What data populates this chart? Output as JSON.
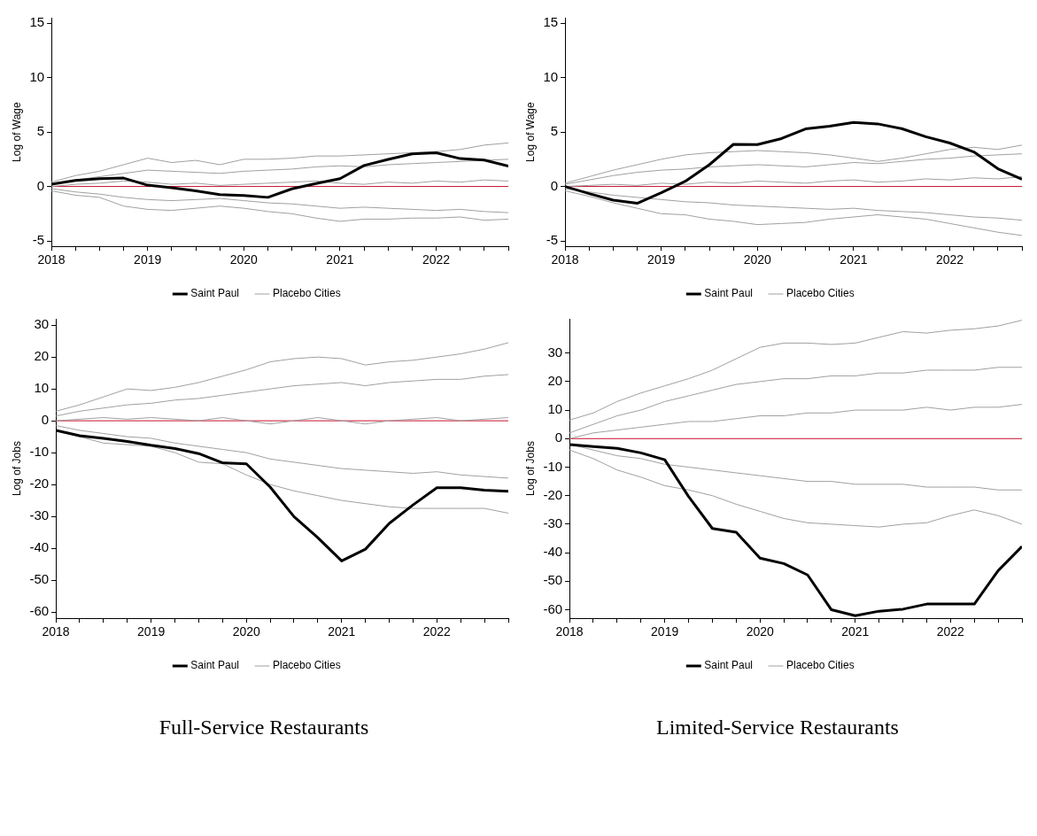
{
  "chart_data": [
    {
      "type": "line",
      "ylabel": "Log of Wage",
      "x": [
        2018,
        2018.25,
        2018.5,
        2018.75,
        2019,
        2019.25,
        2019.5,
        2019.75,
        2020,
        2020.25,
        2020.5,
        2020.75,
        2021,
        2021.25,
        2021.5,
        2021.75,
        2022,
        2022.25,
        2022.5,
        2022.75
      ],
      "xlim": [
        2018,
        2022.75
      ],
      "xticks": [
        2018,
        {
          "value": 2018.25,
          "label": null
        },
        {
          "value": 2018.5,
          "label": null
        },
        {
          "value": 2018.75,
          "label": null
        },
        2019,
        {
          "value": 2019.25,
          "label": null
        },
        {
          "value": 2019.5,
          "label": null
        },
        {
          "value": 2019.75,
          "label": null
        },
        2020,
        {
          "value": 2020.25,
          "label": null
        },
        {
          "value": 2020.5,
          "label": null
        },
        {
          "value": 2020.75,
          "label": null
        },
        2021,
        {
          "value": 2021.25,
          "label": null
        },
        {
          "value": 2021.5,
          "label": null
        },
        {
          "value": 2021.75,
          "label": null
        },
        2022,
        {
          "value": 2022.25,
          "label": null
        },
        {
          "value": 2022.5,
          "label": null
        },
        {
          "value": 2022.75,
          "label": null
        }
      ],
      "ylim": [
        -5.5,
        15.5
      ],
      "yticks": [
        -5,
        0,
        5,
        10,
        15
      ],
      "grid": false,
      "legend": "bottom",
      "ref_lines": [
        {
          "axis": "y",
          "value": 0,
          "color": "#c8102e"
        }
      ],
      "series": [
        {
          "name": "Saint Paul",
          "color": "#000000",
          "values": [
            0.2,
            0.55,
            0.72,
            0.77,
            0.12,
            -0.12,
            -0.4,
            -0.75,
            -0.82,
            -1.0,
            -0.22,
            0.27,
            0.72,
            1.93,
            2.49,
            3.0,
            3.1,
            2.56,
            2.42,
            1.88
          ]
        },
        {
          "name": "Placebo Cities",
          "color": "#a0a0a0",
          "values": [
            0.4,
            1.0,
            1.4,
            2.0,
            2.6,
            2.2,
            2.4,
            2.0,
            2.5,
            2.5,
            2.6,
            2.8,
            2.8,
            2.9,
            3.0,
            3.1,
            3.2,
            3.4,
            3.8,
            4.0
          ]
        },
        {
          "color": "#a0a0a0",
          "values": [
            -0.4,
            -0.8,
            -1.0,
            -1.8,
            -2.1,
            -2.2,
            -2.0,
            -1.8,
            -2.0,
            -2.3,
            -2.5,
            -2.9,
            -3.2,
            -3.0,
            -3.0,
            -2.9,
            -2.9,
            -2.8,
            -3.1,
            -3.0
          ]
        },
        {
          "color": "#a0a0a0",
          "values": [
            0.0,
            0.2,
            0.3,
            0.5,
            0.4,
            0.2,
            0.3,
            0.1,
            0.2,
            0.3,
            0.4,
            0.5,
            0.3,
            0.2,
            0.4,
            0.3,
            0.5,
            0.4,
            0.6,
            0.5
          ]
        },
        {
          "color": "#a0a0a0",
          "values": [
            0.2,
            0.6,
            0.9,
            1.2,
            1.5,
            1.4,
            1.3,
            1.2,
            1.4,
            1.5,
            1.6,
            1.8,
            1.9,
            1.8,
            2.0,
            2.1,
            2.2,
            2.3,
            2.4,
            2.5
          ]
        },
        {
          "color": "#a0a0a0",
          "values": [
            -0.2,
            -0.5,
            -0.7,
            -1.0,
            -1.2,
            -1.3,
            -1.2,
            -1.1,
            -1.3,
            -1.5,
            -1.6,
            -1.8,
            -2.0,
            -1.9,
            -2.0,
            -2.1,
            -2.2,
            -2.1,
            -2.3,
            -2.4
          ]
        }
      ]
    },
    {
      "type": "line",
      "ylabel": "Log of Wage",
      "x": [
        2018,
        2018.25,
        2018.5,
        2018.75,
        2019,
        2019.25,
        2019.5,
        2019.75,
        2020,
        2020.25,
        2020.5,
        2020.75,
        2021,
        2021.25,
        2021.5,
        2021.75,
        2022,
        2022.25,
        2022.5,
        2022.75
      ],
      "xlim": [
        2018,
        2022.75
      ],
      "xticks": [
        2018,
        {
          "value": 2018.25,
          "label": null
        },
        {
          "value": 2018.5,
          "label": null
        },
        {
          "value": 2018.75,
          "label": null
        },
        2019,
        {
          "value": 2019.25,
          "label": null
        },
        {
          "value": 2019.5,
          "label": null
        },
        {
          "value": 2019.75,
          "label": null
        },
        2020,
        {
          "value": 2020.25,
          "label": null
        },
        {
          "value": 2020.5,
          "label": null
        },
        {
          "value": 2020.75,
          "label": null
        },
        2021,
        {
          "value": 2021.25,
          "label": null
        },
        {
          "value": 2021.5,
          "label": null
        },
        {
          "value": 2021.75,
          "label": null
        },
        2022,
        {
          "value": 2022.25,
          "label": null
        },
        {
          "value": 2022.5,
          "label": null
        },
        {
          "value": 2022.75,
          "label": null
        }
      ],
      "ylim": [
        -5.5,
        15.5
      ],
      "yticks": [
        -5,
        0,
        5,
        10,
        15
      ],
      "grid": false,
      "legend": "bottom",
      "ref_lines": [
        {
          "axis": "y",
          "value": 0,
          "color": "#c8102e"
        }
      ],
      "series": [
        {
          "name": "Saint Paul",
          "color": "#000000",
          "values": [
            0,
            -0.65,
            -1.25,
            -1.54,
            -0.58,
            0.48,
            2.0,
            3.87,
            3.85,
            4.4,
            5.29,
            5.53,
            5.89,
            5.75,
            5.31,
            4.57,
            3.99,
            3.17,
            1.63,
            0.67
          ]
        },
        {
          "name": "Placebo Cities",
          "color": "#a0a0a0",
          "values": [
            0.3,
            0.9,
            1.5,
            2.0,
            2.5,
            2.9,
            3.1,
            3.2,
            3.3,
            3.2,
            3.1,
            2.9,
            2.6,
            2.3,
            2.6,
            3.0,
            3.4,
            3.6,
            3.4,
            3.8
          ]
        },
        {
          "color": "#a0a0a0",
          "values": [
            -0.4,
            -0.9,
            -1.5,
            -2.0,
            -2.5,
            -2.6,
            -3.0,
            -3.2,
            -3.5,
            -3.4,
            -3.3,
            -3.0,
            -2.8,
            -2.6,
            -2.8,
            -3.0,
            -3.4,
            -3.8,
            -4.2,
            -4.5
          ]
        },
        {
          "color": "#a0a0a0",
          "values": [
            0,
            0.1,
            0.2,
            0.1,
            0.3,
            0.2,
            0.4,
            0.3,
            0.5,
            0.4,
            0.3,
            0.5,
            0.6,
            0.4,
            0.5,
            0.7,
            0.6,
            0.8,
            0.7,
            0.9
          ]
        },
        {
          "color": "#a0a0a0",
          "values": [
            0.2,
            0.6,
            1.0,
            1.3,
            1.5,
            1.6,
            1.8,
            1.9,
            2.0,
            1.9,
            1.8,
            2.0,
            2.2,
            2.1,
            2.3,
            2.5,
            2.6,
            2.8,
            2.9,
            3.0
          ]
        },
        {
          "color": "#a0a0a0",
          "values": [
            -0.2,
            -0.5,
            -0.8,
            -1.0,
            -1.2,
            -1.4,
            -1.5,
            -1.7,
            -1.8,
            -1.9,
            -2.0,
            -2.1,
            -2.0,
            -2.2,
            -2.3,
            -2.4,
            -2.6,
            -2.8,
            -2.9,
            -3.1
          ]
        }
      ]
    },
    {
      "type": "line",
      "ylabel": "Log of Jobs",
      "annotations": [
        "Full-Service Restaurants"
      ],
      "x": [
        2018,
        2018.25,
        2018.5,
        2018.75,
        2019,
        2019.25,
        2019.5,
        2019.75,
        2020,
        2020.25,
        2020.5,
        2020.75,
        2021,
        2021.25,
        2021.5,
        2021.75,
        2022,
        2022.25,
        2022.5,
        2022.75
      ],
      "xlim": [
        2018,
        2022.75
      ],
      "xticks": [
        2018,
        {
          "value": 2018.25,
          "label": null
        },
        {
          "value": 2018.5,
          "label": null
        },
        {
          "value": 2018.75,
          "label": null
        },
        2019,
        {
          "value": 2019.25,
          "label": null
        },
        {
          "value": 2019.5,
          "label": null
        },
        {
          "value": 2019.75,
          "label": null
        },
        2020,
        {
          "value": 2020.25,
          "label": null
        },
        {
          "value": 2020.5,
          "label": null
        },
        {
          "value": 2020.75,
          "label": null
        },
        2021,
        {
          "value": 2021.25,
          "label": null
        },
        {
          "value": 2021.5,
          "label": null
        },
        {
          "value": 2021.75,
          "label": null
        },
        2022,
        {
          "value": 2022.25,
          "label": null
        },
        {
          "value": 2022.5,
          "label": null
        },
        {
          "value": 2022.75,
          "label": null
        }
      ],
      "ylim": [
        -62,
        32
      ],
      "yticks": [
        -60,
        -50,
        -40,
        -30,
        -20,
        -10,
        0,
        10,
        20,
        30
      ],
      "grid": false,
      "legend": "bottom",
      "ref_lines": [
        {
          "axis": "y",
          "value": 0,
          "color": "#c8102e"
        }
      ],
      "series": [
        {
          "name": "Saint Paul",
          "color": "#000000",
          "values": [
            -3.0,
            -4.7,
            -5.5,
            -6.5,
            -7.7,
            -8.7,
            -10.3,
            -13.2,
            -13.5,
            -20.8,
            -30.1,
            -36.7,
            -44,
            -40.3,
            -32.2,
            -26.4,
            -21,
            -21,
            -21.8,
            -22.1
          ]
        },
        {
          "name": "Placebo Cities",
          "color": "#a0a0a0",
          "values": [
            3,
            5,
            7.5,
            10,
            9.5,
            10.5,
            12,
            14,
            16,
            18.5,
            19.5,
            20,
            19.5,
            17.5,
            18.5,
            19,
            20,
            21,
            22.5,
            24.5
          ]
        },
        {
          "color": "#a0a0a0",
          "values": [
            -3,
            -5,
            -7,
            -7.5,
            -8,
            -10,
            -13,
            -13.5,
            -17,
            -20,
            -22,
            -23.5,
            -25,
            -26,
            -27,
            -27.5,
            -27.5,
            -27.5,
            -27.5,
            -29
          ]
        },
        {
          "color": "#a0a0a0",
          "values": [
            0,
            0.5,
            1,
            0.5,
            1,
            0.5,
            0,
            1,
            0,
            -1,
            0,
            1,
            0,
            -1,
            0,
            0.5,
            1,
            0,
            0.5,
            1
          ]
        },
        {
          "color": "#a0a0a0",
          "values": [
            1.5,
            3,
            4,
            5,
            5.5,
            6.5,
            7,
            8,
            9,
            10,
            11,
            11.5,
            12,
            11,
            12,
            12.5,
            13,
            13,
            14,
            14.5
          ]
        },
        {
          "color": "#a0a0a0",
          "values": [
            -1.5,
            -3,
            -4,
            -5,
            -5.5,
            -7,
            -8,
            -9,
            -10,
            -12,
            -13,
            -14,
            -15,
            -15.5,
            -16,
            -16.5,
            -16,
            -17,
            -17.5,
            -18
          ]
        }
      ]
    },
    {
      "type": "line",
      "ylabel": "Log of Jobs",
      "annotations": [
        "Limited-Service Restaurants"
      ],
      "x": [
        2018,
        2018.25,
        2018.5,
        2018.75,
        2019,
        2019.25,
        2019.5,
        2019.75,
        2020,
        2020.25,
        2020.5,
        2020.75,
        2021,
        2021.25,
        2021.5,
        2021.75,
        2022,
        2022.25,
        2022.5,
        2022.75
      ],
      "xlim": [
        2018,
        2022.75
      ],
      "xticks": [
        2018,
        {
          "value": 2018.25,
          "label": null
        },
        {
          "value": 2018.5,
          "label": null
        },
        {
          "value": 2018.75,
          "label": null
        },
        2019,
        {
          "value": 2019.25,
          "label": null
        },
        {
          "value": 2019.5,
          "label": null
        },
        {
          "value": 2019.75,
          "label": null
        },
        2020,
        {
          "value": 2020.25,
          "label": null
        },
        {
          "value": 2020.5,
          "label": null
        },
        {
          "value": 2020.75,
          "label": null
        },
        2021,
        {
          "value": 2021.25,
          "label": null
        },
        {
          "value": 2021.5,
          "label": null
        },
        {
          "value": 2021.75,
          "label": null
        },
        2022,
        {
          "value": 2022.25,
          "label": null
        },
        {
          "value": 2022.5,
          "label": null
        },
        {
          "value": 2022.75,
          "label": null
        }
      ],
      "ylim": [
        -63,
        42
      ],
      "yticks": [
        -60,
        -50,
        -40,
        -30,
        -20,
        -10,
        0,
        10,
        20,
        30
      ],
      "grid": false,
      "legend": "bottom",
      "ref_lines": [
        {
          "axis": "y",
          "value": 0,
          "color": "#c8102e"
        }
      ],
      "series": [
        {
          "name": "Saint Paul",
          "color": "#000000",
          "values": [
            -2.1,
            -2.75,
            -3.4,
            -5,
            -7.4,
            -20.3,
            -31.5,
            -32.8,
            -41.9,
            -43.8,
            -47.8,
            -60,
            -62.1,
            -60.5,
            -59.8,
            -58,
            -58,
            -58,
            -46.3,
            -37.8
          ]
        },
        {
          "name": "Placebo Cities",
          "color": "#a0a0a0",
          "values": [
            6.5,
            9,
            13,
            16,
            18.5,
            21,
            24,
            28,
            32,
            33.5,
            33.5,
            33,
            33.5,
            35.5,
            37.5,
            37,
            38,
            38.5,
            39.5,
            41.5
          ]
        },
        {
          "color": "#a0a0a0",
          "values": [
            -4,
            -7,
            -11,
            -13.5,
            -16.5,
            -18,
            -20,
            -23,
            -25.5,
            -28,
            -29.5,
            -30,
            -30.5,
            -31,
            -30,
            -29.5,
            -27,
            -25,
            -27,
            -30
          ]
        },
        {
          "color": "#a0a0a0",
          "values": [
            0,
            2,
            3,
            4,
            5,
            6,
            6,
            7,
            8,
            8,
            9,
            9,
            10,
            10,
            10,
            11,
            10,
            11,
            11,
            12
          ]
        },
        {
          "color": "#a0a0a0",
          "values": [
            2,
            5,
            8,
            10,
            13,
            15,
            17,
            19,
            20,
            21,
            21,
            22,
            22,
            23,
            23,
            24,
            24,
            24,
            25,
            25
          ]
        },
        {
          "color": "#a0a0a0",
          "values": [
            -2,
            -4,
            -6,
            -7,
            -9,
            -10,
            -11,
            -12,
            -13,
            -14,
            -15,
            -15,
            -16,
            -16,
            -16,
            -17,
            -17,
            -17,
            -18,
            -18
          ]
        }
      ]
    }
  ]
}
